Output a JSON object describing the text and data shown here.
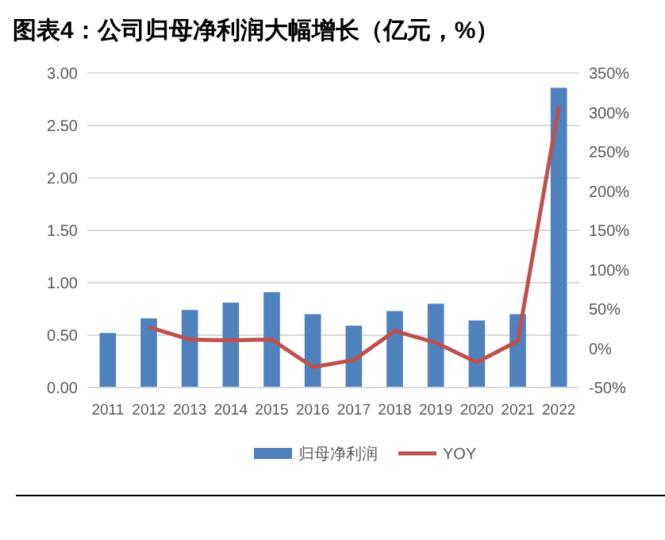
{
  "chart_data": {
    "type": "bar",
    "title": "图表4：公司归母净利润大幅增长（亿元，%）",
    "categories": [
      "2011",
      "2012",
      "2013",
      "2014",
      "2015",
      "2016",
      "2017",
      "2018",
      "2019",
      "2020",
      "2021",
      "2022"
    ],
    "series": [
      {
        "name": "归母净利润",
        "color": "#4f81bd",
        "values": [
          0.52,
          0.66,
          0.74,
          0.81,
          0.91,
          0.7,
          0.59,
          0.73,
          0.8,
          0.64,
          0.7,
          2.86
        ]
      },
      {
        "name": "YOY",
        "type": "line",
        "axis": "y2",
        "color": "#c0504d",
        "values": [
          null,
          27,
          11,
          10,
          11,
          -24,
          -15,
          22,
          7,
          -18,
          9,
          308
        ]
      }
    ],
    "ylim": [
      0,
      3
    ],
    "yticks": [
      {
        "value": 0,
        "label": "0.00"
      },
      {
        "value": 0.5,
        "label": "0.50"
      },
      {
        "value": 1,
        "label": "1.00"
      },
      {
        "value": 1.5,
        "label": "1.50"
      },
      {
        "value": 2,
        "label": "2.00"
      },
      {
        "value": 2.5,
        "label": "2.50"
      },
      {
        "value": 3,
        "label": "3.00"
      }
    ],
    "y2lim": [
      -50,
      350
    ],
    "y2ticks": [
      {
        "value": -50,
        "label": "-50%"
      },
      {
        "value": 0,
        "label": "0%"
      },
      {
        "value": 50,
        "label": "50%"
      },
      {
        "value": 100,
        "label": "100%"
      },
      {
        "value": 150,
        "label": "150%"
      },
      {
        "value": 200,
        "label": "200%"
      },
      {
        "value": 250,
        "label": "250%"
      },
      {
        "value": 300,
        "label": "300%"
      },
      {
        "value": 350,
        "label": "350%"
      }
    ],
    "grid": "y",
    "legend": "bottom",
    "marker": "none",
    "line_style": "solid"
  }
}
